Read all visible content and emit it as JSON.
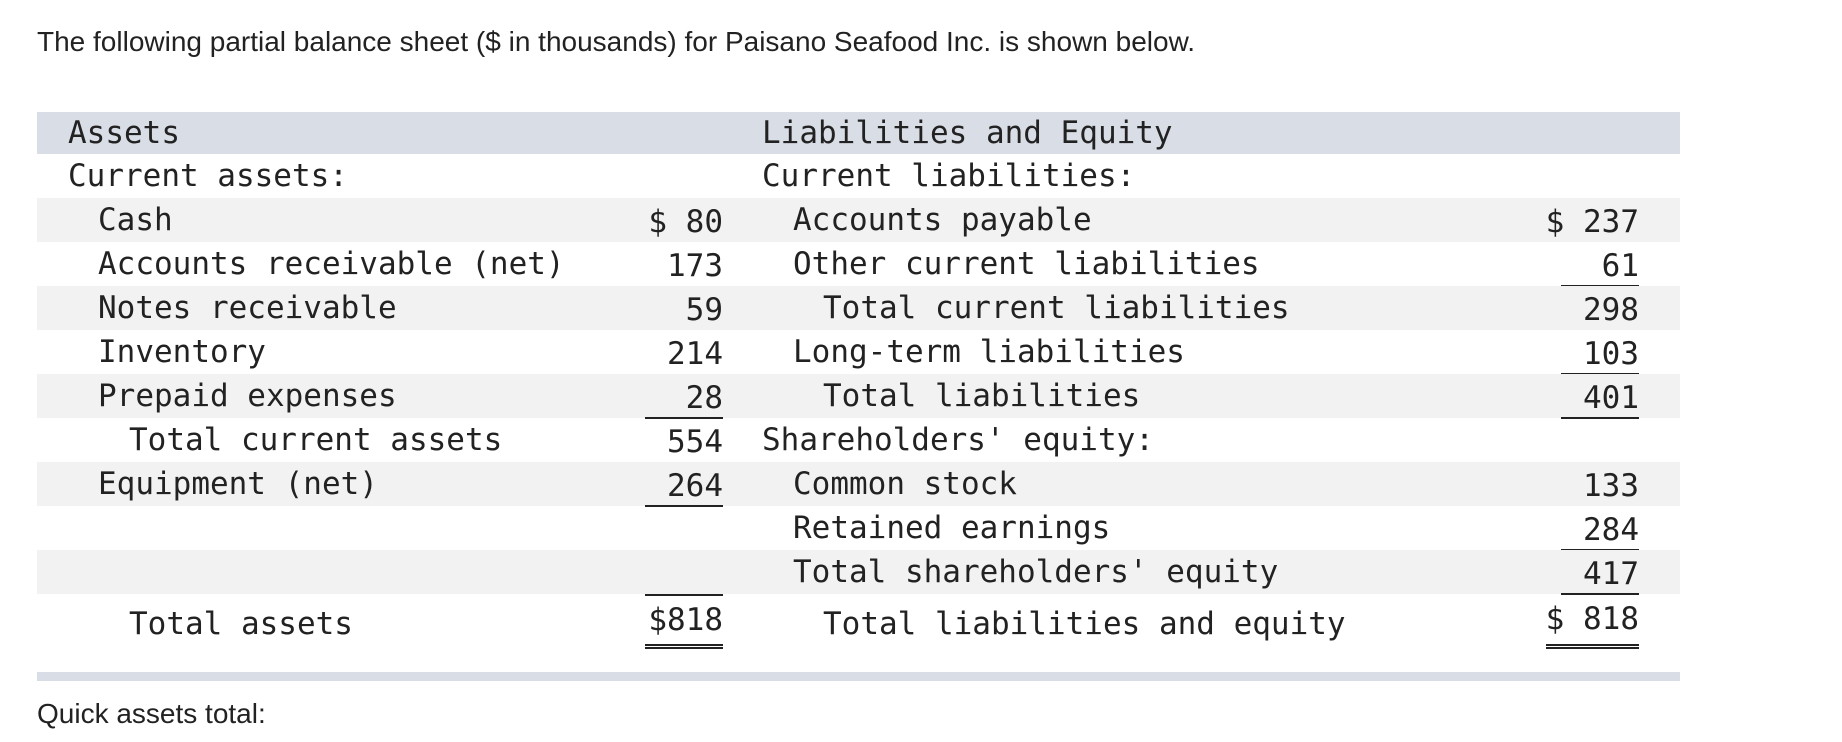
{
  "intro": "The following partial balance sheet ($ in thousands) for Paisano Seafood Inc. is shown below.",
  "table": {
    "header": {
      "left": "Assets",
      "right": "Liabilities and Equity"
    },
    "rows": [
      {
        "left": "Current assets:",
        "right": "Current liabilities:"
      },
      {
        "left": "Cash",
        "left_amount": "$ 80",
        "right": "Accounts payable",
        "right_amount": "$ 237"
      },
      {
        "left": "Accounts receivable (net)",
        "left_amount": "173",
        "right": "Other current liabilities",
        "right_amount": "61"
      },
      {
        "left": "Notes receivable",
        "left_amount": "59",
        "right": "Total current liabilities",
        "right_amount": "298"
      },
      {
        "left": "Inventory",
        "left_amount": "214",
        "right": "Long-term liabilities",
        "right_amount": "103"
      },
      {
        "left": "Prepaid expenses",
        "left_amount": "28",
        "right": "Total liabilities",
        "right_amount": "401"
      },
      {
        "left": "Total current assets",
        "left_amount": "554",
        "right": "Shareholders' equity:"
      },
      {
        "left": "Equipment (net)",
        "left_amount": "264",
        "right": "Common stock",
        "right_amount": "133"
      },
      {
        "right": "Retained earnings",
        "right_amount": "284"
      },
      {
        "right": "Total shareholders' equity",
        "right_amount": "417"
      },
      {
        "left": "Total assets",
        "left_amount": "$818",
        "right": "Total liabilities and equity",
        "right_amount": "$ 818"
      }
    ]
  },
  "footer": "Quick assets total:"
}
